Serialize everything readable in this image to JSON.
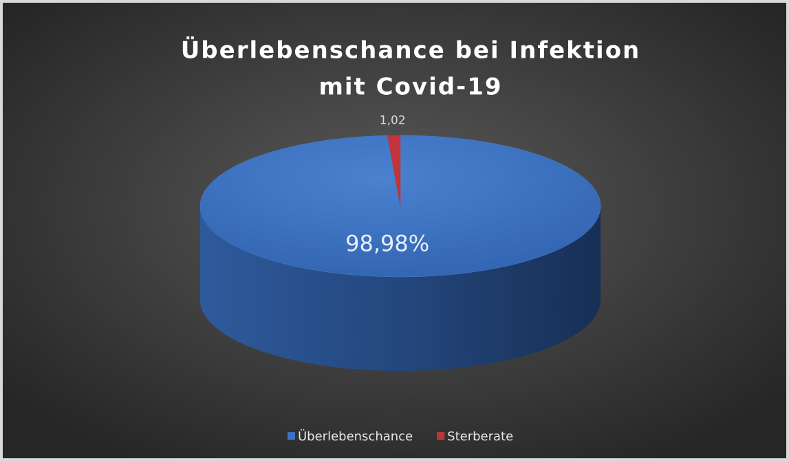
{
  "chart_data": {
    "type": "pie",
    "title_lines": [
      "Überlebenschance bei Infektion",
      "mit Covid-19"
    ],
    "categories": [
      "Überlebenschance",
      "Sterberate"
    ],
    "values": [
      98.98,
      1.02
    ],
    "value_labels": [
      "98,98%",
      "1,02"
    ],
    "colors": [
      "#3b73c4",
      "#c0343a"
    ],
    "legend": "bottom"
  }
}
